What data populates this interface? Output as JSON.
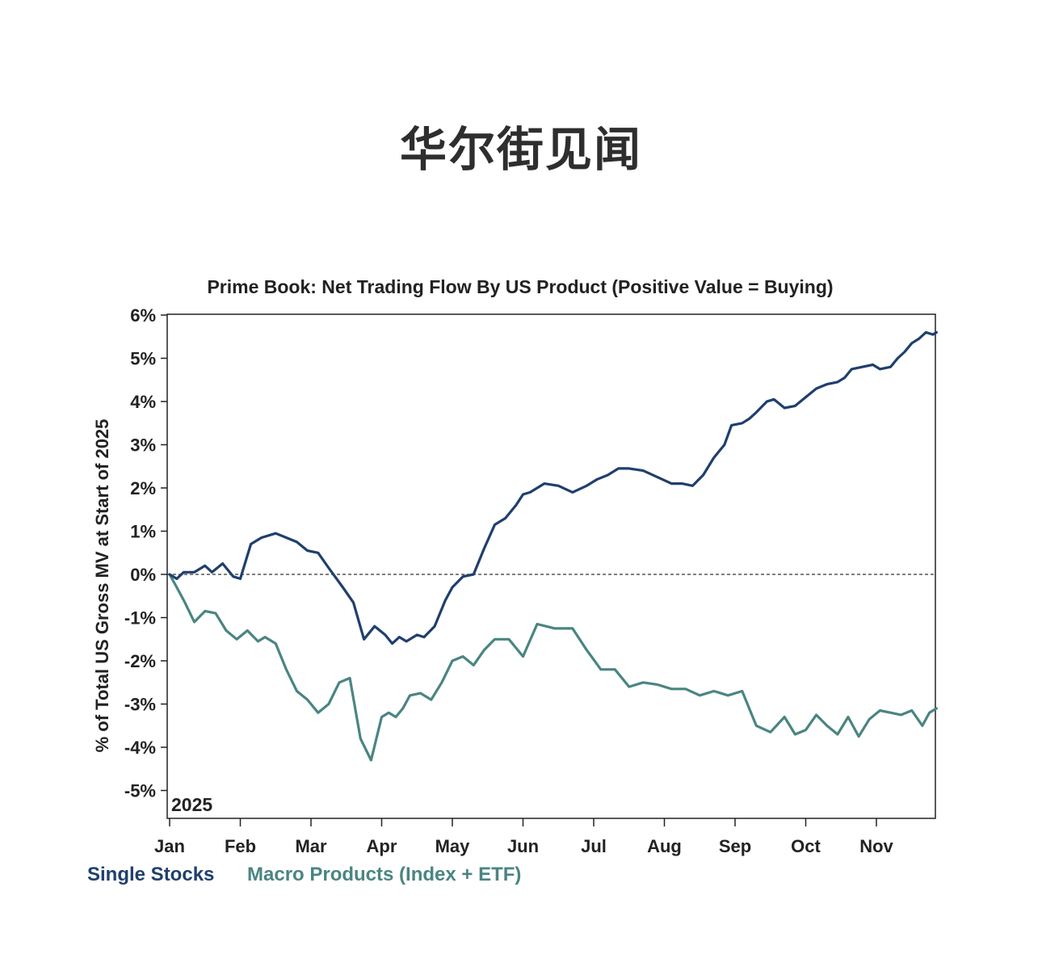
{
  "watermark": "华尔街见闻",
  "chart_data": {
    "type": "line",
    "title": "Prime Book: Net Trading Flow By US Product (Positive Value = Buying)",
    "ylabel": "% of Total US Gross MV at Start of 2025",
    "year_label": "2025",
    "ylim": [
      -5.8,
      6
    ],
    "y_ticks": [
      6,
      5,
      4,
      3,
      2,
      1,
      0,
      -1,
      -2,
      -3,
      -4,
      -5
    ],
    "y_tick_labels": [
      "6%",
      "5%",
      "4%",
      "3%",
      "2%",
      "1%",
      "0%",
      "-1%",
      "-2%",
      "-3%",
      "-4%",
      "-5%"
    ],
    "x_ticks": [
      0,
      1,
      2,
      3,
      4,
      5,
      6,
      7,
      8,
      9,
      10
    ],
    "x_tick_labels": [
      "Jan",
      "Feb",
      "Mar",
      "Apr",
      "May",
      "Jun",
      "Jul",
      "Aug",
      "Sep",
      "Oct",
      "Nov"
    ],
    "xlim": [
      0,
      10.85
    ],
    "reference_line": 0,
    "colors": {
      "single": "#1f3f6e",
      "macro": "#4a8582",
      "axis": "#222222"
    },
    "series": [
      {
        "name": "Single Stocks",
        "x": [
          0,
          0.1,
          0.2,
          0.35,
          0.5,
          0.6,
          0.75,
          0.9,
          1.0,
          1.15,
          1.3,
          1.5,
          1.65,
          1.8,
          1.95,
          2.1,
          2.25,
          2.45,
          2.6,
          2.75,
          2.9,
          3.05,
          3.15,
          3.25,
          3.35,
          3.5,
          3.6,
          3.75,
          3.9,
          4.0,
          4.15,
          4.3,
          4.45,
          4.6,
          4.75,
          4.9,
          5.0,
          5.1,
          5.3,
          5.5,
          5.7,
          5.9,
          6.05,
          6.2,
          6.35,
          6.5,
          6.7,
          6.9,
          7.1,
          7.25,
          7.4,
          7.55,
          7.7,
          7.85,
          7.95,
          8.1,
          8.2,
          8.3,
          8.45,
          8.55,
          8.7,
          8.85,
          9.0,
          9.15,
          9.3,
          9.45,
          9.55,
          9.65,
          9.8,
          9.95,
          10.05,
          10.2,
          10.3,
          10.4,
          10.5,
          10.6,
          10.7,
          10.8,
          10.85
        ],
        "values": [
          0,
          -0.1,
          0.05,
          0.05,
          0.2,
          0.05,
          0.25,
          -0.05,
          -0.1,
          0.7,
          0.85,
          0.95,
          0.85,
          0.75,
          0.55,
          0.5,
          0.15,
          -0.3,
          -0.65,
          -1.5,
          -1.2,
          -1.4,
          -1.6,
          -1.45,
          -1.55,
          -1.4,
          -1.45,
          -1.2,
          -0.6,
          -0.3,
          -0.05,
          0.0,
          0.6,
          1.15,
          1.3,
          1.6,
          1.85,
          1.9,
          2.1,
          2.05,
          1.9,
          2.05,
          2.2,
          2.3,
          2.45,
          2.45,
          2.4,
          2.25,
          2.1,
          2.1,
          2.05,
          2.3,
          2.7,
          3.0,
          3.45,
          3.5,
          3.6,
          3.75,
          4.0,
          4.05,
          3.85,
          3.9,
          4.1,
          4.3,
          4.4,
          4.45,
          4.55,
          4.75,
          4.8,
          4.85,
          4.75,
          4.8,
          5.0,
          5.15,
          5.35,
          5.45,
          5.6,
          5.55,
          5.6
        ]
      },
      {
        "name": "Macro Products (Index + ETF)",
        "x": [
          0,
          0.1,
          0.2,
          0.35,
          0.5,
          0.65,
          0.8,
          0.95,
          1.1,
          1.25,
          1.35,
          1.5,
          1.65,
          1.8,
          1.95,
          2.1,
          2.25,
          2.4,
          2.55,
          2.7,
          2.85,
          3.0,
          3.1,
          3.2,
          3.3,
          3.4,
          3.55,
          3.7,
          3.85,
          4.0,
          4.15,
          4.3,
          4.45,
          4.6,
          4.8,
          5.0,
          5.2,
          5.45,
          5.7,
          5.9,
          6.1,
          6.3,
          6.5,
          6.7,
          6.9,
          7.1,
          7.3,
          7.5,
          7.7,
          7.9,
          8.1,
          8.3,
          8.5,
          8.7,
          8.85,
          9.0,
          9.15,
          9.3,
          9.45,
          9.6,
          9.75,
          9.9,
          10.05,
          10.2,
          10.35,
          10.5,
          10.65,
          10.75,
          10.85
        ],
        "values": [
          0,
          -0.3,
          -0.6,
          -1.1,
          -0.85,
          -0.9,
          -1.3,
          -1.5,
          -1.3,
          -1.55,
          -1.45,
          -1.6,
          -2.2,
          -2.7,
          -2.9,
          -3.2,
          -3.0,
          -2.5,
          -2.4,
          -3.8,
          -4.3,
          -3.3,
          -3.2,
          -3.3,
          -3.1,
          -2.8,
          -2.75,
          -2.9,
          -2.5,
          -2.0,
          -1.9,
          -2.1,
          -1.75,
          -1.5,
          -1.5,
          -1.9,
          -1.15,
          -1.25,
          -1.25,
          -1.75,
          -2.2,
          -2.2,
          -2.6,
          -2.5,
          -2.55,
          -2.65,
          -2.65,
          -2.8,
          -2.7,
          -2.8,
          -2.7,
          -3.5,
          -3.65,
          -3.3,
          -3.7,
          -3.6,
          -3.25,
          -3.5,
          -3.7,
          -3.3,
          -3.75,
          -3.35,
          -3.15,
          -3.2,
          -3.25,
          -3.15,
          -3.5,
          -3.2,
          -3.1
        ]
      }
    ],
    "legend": [
      "Single Stocks",
      "Macro Products (Index + ETF)"
    ],
    "legend_position": "bottom-left",
    "grid": false
  }
}
